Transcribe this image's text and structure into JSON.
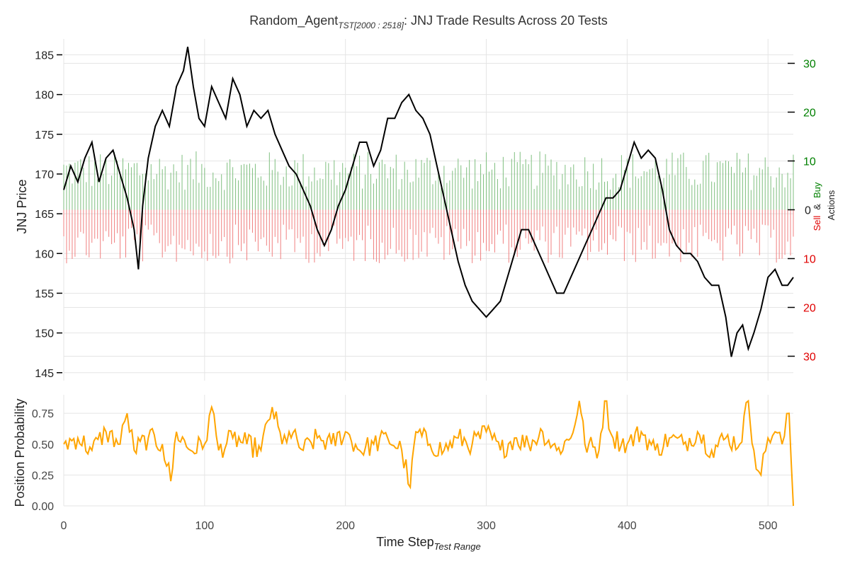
{
  "title_main": "Random_Agent",
  "title_sub": "TST[2000 : 2518]",
  "title_rest": ": JNJ Trade Results Across 20 Tests",
  "colors": {
    "price_line": "#000000",
    "buy_bars": "#7fbf7f",
    "sell_bars": "#f08080",
    "buy_text": "#008000",
    "sell_text": "#e00000",
    "probability_line": "#ffa500",
    "grid": "#e5e5e5"
  },
  "chart_data": [
    {
      "type": "line",
      "ylabel": "JNJ Price",
      "xlim": [
        0,
        518
      ],
      "ylim": [
        144,
        187
      ],
      "y_ticks": [
        "145",
        "150",
        "155",
        "160",
        "165",
        "170",
        "175",
        "180",
        "185"
      ],
      "grid": true,
      "series": [
        {
          "x": [
            0,
            5,
            10,
            15,
            20,
            25,
            30,
            35,
            40,
            45,
            50,
            53,
            56,
            60,
            65,
            70,
            75,
            80,
            85,
            88,
            92,
            96,
            100,
            105,
            110,
            115,
            120,
            125,
            130,
            135,
            140,
            145,
            150,
            155,
            160,
            165,
            170,
            175,
            180,
            185,
            190,
            195,
            200,
            205,
            210,
            215,
            220,
            225,
            230,
            235,
            240,
            245,
            250,
            255,
            260,
            265,
            270,
            275,
            280,
            285,
            290,
            295,
            300,
            305,
            310,
            315,
            320,
            325,
            330,
            335,
            340,
            345,
            350,
            355,
            360,
            365,
            370,
            375,
            380,
            385,
            390,
            395,
            400,
            405,
            410,
            415,
            420,
            425,
            430,
            435,
            440,
            445,
            450,
            455,
            460,
            465,
            470,
            474,
            478,
            482,
            486,
            490,
            495,
            500,
            505,
            510,
            514,
            518
          ],
          "y": [
            168,
            171,
            169,
            172,
            174,
            169,
            172,
            173,
            170,
            167,
            163,
            158,
            166,
            172,
            176,
            178,
            176,
            181,
            183,
            186,
            181,
            177,
            176,
            181,
            179,
            177,
            182,
            180,
            176,
            178,
            177,
            178,
            175,
            173,
            171,
            170,
            168,
            166,
            163,
            161,
            163,
            166,
            168,
            171,
            174,
            174,
            171,
            173,
            177,
            177,
            179,
            180,
            178,
            177,
            175,
            171,
            167,
            163,
            159,
            156,
            154,
            153,
            152,
            153,
            154,
            157,
            160,
            163,
            163,
            161,
            159,
            157,
            155,
            155,
            157,
            159,
            161,
            163,
            165,
            167,
            167,
            168,
            171,
            174,
            172,
            173,
            172,
            168,
            163,
            161,
            160,
            160,
            159,
            157,
            156,
            156,
            152,
            147,
            150,
            151,
            148,
            150,
            153,
            157,
            158,
            156,
            156,
            157
          ]
        }
      ]
    },
    {
      "type": "bar",
      "ylabel_parts": [
        "Sell",
        "&",
        "Buy"
      ],
      "ylabel2": "Actions",
      "xlim": [
        0,
        518
      ],
      "ylim": [
        -35,
        35
      ],
      "y_ticks_buy": [
        "30",
        "20",
        "10"
      ],
      "y_tick_zero": "0",
      "y_ticks_sell": [
        "10",
        "20",
        "30"
      ],
      "series": [
        {
          "name": "Buy",
          "base": 8,
          "amplitude": 4
        },
        {
          "name": "Sell",
          "base": 7,
          "amplitude": 4
        }
      ]
    },
    {
      "type": "line",
      "ylabel": "Position Probability",
      "xlabel_main": "Time Step",
      "xlabel_sub": "Test Range",
      "xlim": [
        0,
        518
      ],
      "ylim": [
        0,
        0.9
      ],
      "y_ticks": [
        "0.00",
        "0.25",
        "0.50",
        "0.75"
      ],
      "x_ticks": [
        "0",
        "100",
        "200",
        "300",
        "400",
        "500"
      ],
      "grid": true,
      "series": [
        {
          "x": [
            0,
            10,
            20,
            30,
            40,
            45,
            50,
            60,
            70,
            76,
            80,
            90,
            100,
            105,
            110,
            120,
            130,
            140,
            148,
            155,
            160,
            170,
            180,
            190,
            200,
            210,
            220,
            230,
            240,
            246,
            250,
            260,
            270,
            280,
            290,
            300,
            310,
            320,
            330,
            340,
            350,
            360,
            366,
            370,
            380,
            384,
            390,
            400,
            410,
            420,
            430,
            440,
            450,
            460,
            470,
            480,
            486,
            490,
            495,
            500,
            505,
            510,
            515,
            518
          ],
          "y": [
            0.5,
            0.55,
            0.45,
            0.6,
            0.5,
            0.75,
            0.45,
            0.55,
            0.5,
            0.2,
            0.6,
            0.45,
            0.5,
            0.8,
            0.45,
            0.55,
            0.5,
            0.45,
            0.8,
            0.5,
            0.6,
            0.45,
            0.55,
            0.5,
            0.6,
            0.45,
            0.5,
            0.55,
            0.45,
            0.15,
            0.6,
            0.5,
            0.45,
            0.55,
            0.5,
            0.6,
            0.45,
            0.55,
            0.5,
            0.6,
            0.45,
            0.55,
            0.85,
            0.5,
            0.45,
            0.85,
            0.55,
            0.5,
            0.6,
            0.45,
            0.55,
            0.5,
            0.6,
            0.45,
            0.55,
            0.5,
            0.85,
            0.45,
            0.25,
            0.55,
            0.6,
            0.5,
            0.75,
            0.0
          ]
        }
      ]
    }
  ]
}
